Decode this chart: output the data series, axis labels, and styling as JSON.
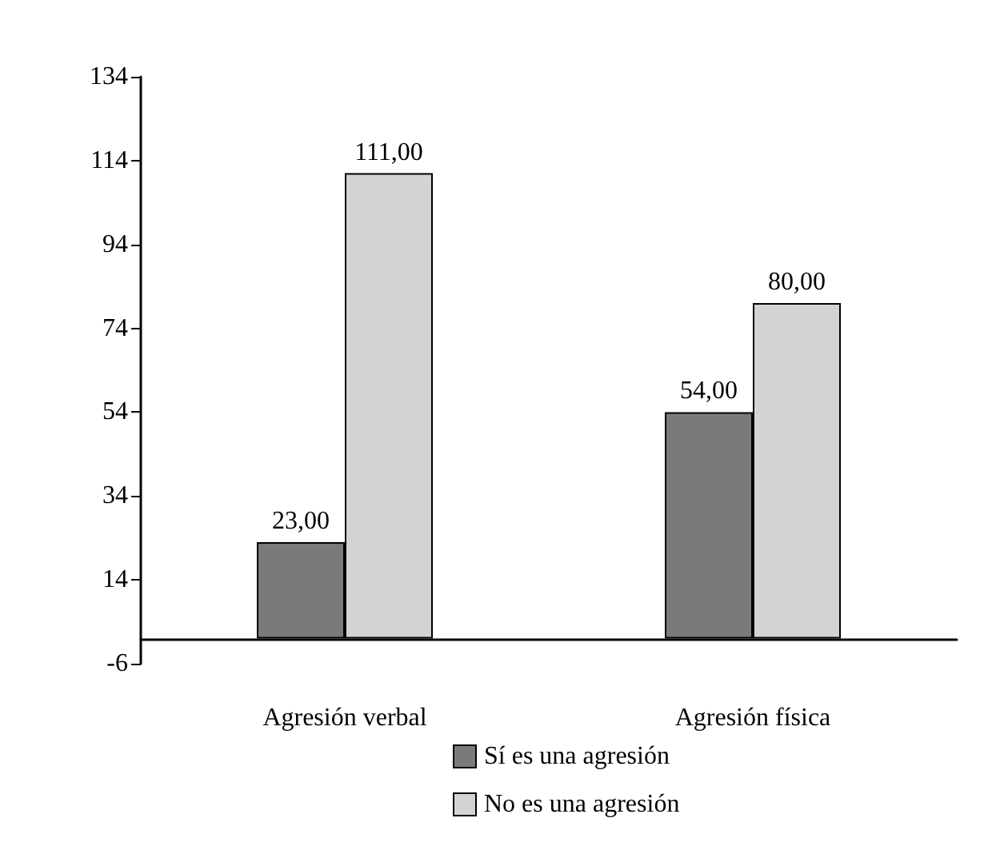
{
  "chart_data": {
    "type": "bar",
    "categories": [
      "Agresión verbal",
      "Agresión física"
    ],
    "series": [
      {
        "name": "Sí es una agresión",
        "color": "#7a7a7a",
        "values": [
          23,
          54
        ],
        "value_labels": [
          "23,00",
          "54,00"
        ]
      },
      {
        "name": "No es una agresión",
        "color": "#d3d3d3",
        "values": [
          111,
          80
        ],
        "value_labels": [
          "111,00",
          "80,00"
        ]
      }
    ],
    "ylim": [
      -6,
      134
    ],
    "yticks": [
      -6,
      14,
      34,
      54,
      74,
      94,
      114,
      134
    ],
    "grid": false,
    "legend": "bottom"
  }
}
